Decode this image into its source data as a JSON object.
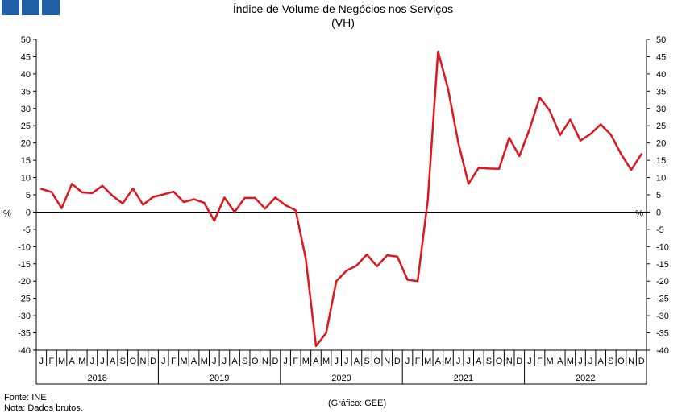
{
  "header": {
    "title": "Índice de Volume de Negócios nos Serviços",
    "subtitle": "(VH)"
  },
  "footer": {
    "source": "Fonte: INE",
    "note": "Nota: Dados brutos.",
    "credit": "(Gráfico: GEE)"
  },
  "colors": {
    "line": "#e0161e",
    "logo": "#1f5fa8"
  },
  "chart_data": {
    "type": "line",
    "title": "Índice de Volume de Negócios nos Serviços",
    "subtitle": "(VH)",
    "ylabel": "%",
    "ylim": [
      -40,
      50
    ],
    "yticks": [
      -40,
      -35,
      -30,
      -25,
      -20,
      -15,
      -10,
      -5,
      0,
      5,
      10,
      15,
      20,
      25,
      30,
      35,
      40,
      45,
      50
    ],
    "grid": false,
    "month_labels": [
      "J",
      "F",
      "M",
      "A",
      "M",
      "J",
      "J",
      "A",
      "S",
      "O",
      "N",
      "D"
    ],
    "years": [
      "2018",
      "2019",
      "2020",
      "2021",
      "2022"
    ],
    "series": [
      {
        "values": [
          6.7,
          5.8,
          1.1,
          8.2,
          5.7,
          5.5,
          7.6,
          4.7,
          2.5,
          6.8,
          2.1,
          4.4,
          5.1,
          5.9,
          2.9,
          3.7,
          2.7,
          -2.5,
          4.2,
          0.0,
          4.1,
          4.1,
          1.0,
          4.2,
          2.0,
          0.5,
          -13.5,
          -38.8,
          -35.0,
          -20.0,
          -17.0,
          -15.5,
          -12.3,
          -15.7,
          -12.5,
          -12.9,
          -19.6,
          -20.0,
          3.5,
          46.5,
          35.5,
          20.0,
          8.2,
          12.8,
          12.6,
          12.5,
          21.5,
          16.2,
          24.0,
          33.2,
          29.3,
          22.3,
          26.8,
          20.7,
          22.6,
          25.4,
          22.4,
          16.8,
          12.2,
          16.8
        ]
      }
    ]
  }
}
